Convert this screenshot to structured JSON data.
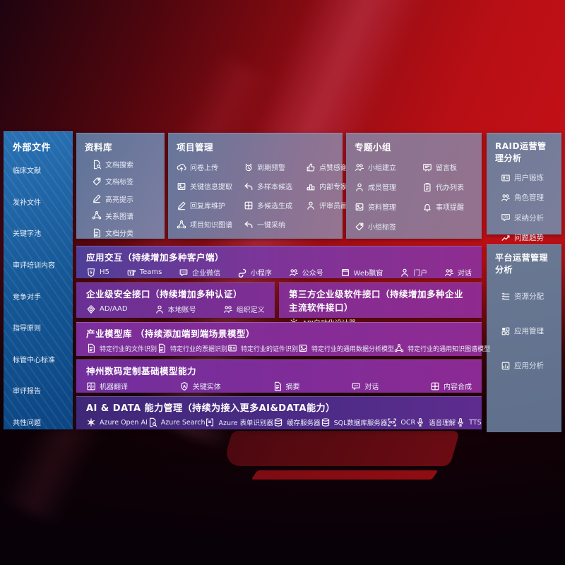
{
  "colors": {
    "background_red": "#b70f15",
    "left_panel_blue": "#145694",
    "slate_panel": "#6f7b97",
    "purple_row": "#7c3598",
    "dark_purple_row": "#4b2b86",
    "text": "#ffffff"
  },
  "panels": {
    "external_files": {
      "title": "外部文件",
      "items": [
        {
          "label": "临床文献"
        },
        {
          "label": "发补文件"
        },
        {
          "label": "关键字池"
        },
        {
          "label": "审评培训内容"
        },
        {
          "label": "竞争对手"
        },
        {
          "label": "指导原则"
        },
        {
          "label": "标管中心标准"
        },
        {
          "label": "审评报告"
        },
        {
          "label": "共性问题"
        }
      ]
    },
    "repository": {
      "title": "资料库",
      "items": [
        {
          "icon": "doc-search-icon",
          "label": "文档搜索"
        },
        {
          "icon": "doc-tag-icon",
          "label": "文档标签"
        },
        {
          "icon": "highlight-pencil-icon",
          "label": "高亮提示"
        },
        {
          "icon": "relation-graph-icon",
          "label": "关系图谱"
        },
        {
          "icon": "doc-classify-icon",
          "label": "文档分类"
        }
      ]
    },
    "project_mgmt": {
      "title": "项目管理",
      "items": [
        {
          "icon": "cloud-upload-icon",
          "label": "问卷上传"
        },
        {
          "icon": "alarm-warning-icon",
          "label": "到期预警"
        },
        {
          "icon": "thumbs-up-icon",
          "label": "点赞感谢"
        },
        {
          "icon": "info-extract-icon",
          "label": "关键信息提取"
        },
        {
          "icon": "multi-sample-icon",
          "label": "多样本候选"
        },
        {
          "icon": "expert-ranking-icon",
          "label": "内部专家排名"
        },
        {
          "icon": "reply-maintain-icon",
          "label": "回复库维护"
        },
        {
          "icon": "multi-generate-icon",
          "label": "多候选生成"
        },
        {
          "icon": "reviewer-profile-icon",
          "label": "评审员画像"
        },
        {
          "icon": "knowledge-graph-icon",
          "label": "项目知识图谱"
        },
        {
          "icon": "one-click-adopt-icon",
          "label": "一键采纳"
        }
      ]
    },
    "topic_groups": {
      "title": "专题小组",
      "items": [
        {
          "icon": "group-create-icon",
          "label": "小组建立"
        },
        {
          "icon": "message-board-icon",
          "label": "留言板"
        },
        {
          "icon": "member-manage-icon",
          "label": "成员管理"
        },
        {
          "icon": "todo-list-icon",
          "label": "代办列表"
        },
        {
          "icon": "material-manage-icon",
          "label": "资料管理"
        },
        {
          "icon": "reminder-bell-icon",
          "label": "事项提醒"
        },
        {
          "icon": "group-tag-icon",
          "label": "小组标签"
        }
      ]
    },
    "raid_analysis": {
      "title": "RAID运营管理分析",
      "items": [
        {
          "icon": "user-card-icon",
          "label": "用户锻炼"
        },
        {
          "icon": "role-manage-icon",
          "label": "角色管理"
        },
        {
          "icon": "adoption-analysis-icon",
          "label": "采纳分析"
        },
        {
          "icon": "issue-trend-icon",
          "label": "问题趋势"
        }
      ]
    },
    "platform_analysis": {
      "title": "平台运营管理分析",
      "items": [
        {
          "icon": "resource-list-icon",
          "label": "资源分配"
        },
        {
          "icon": "app-grid-icon",
          "label": "应用管理"
        },
        {
          "icon": "app-analysis-icon",
          "label": "应用分析"
        }
      ]
    },
    "app_interaction": {
      "title": "应用交互（持续增加多种客户端）",
      "items": [
        {
          "icon": "h5-icon",
          "label": "H5"
        },
        {
          "icon": "teams-icon",
          "label": "Teams"
        },
        {
          "icon": "wechat-work-icon",
          "label": "企业微信"
        },
        {
          "icon": "miniprogram-icon",
          "label": "小程序"
        },
        {
          "icon": "official-account-icon",
          "label": "公众号"
        },
        {
          "icon": "web-popup-icon",
          "label": "Web飘窗"
        },
        {
          "icon": "portal-icon",
          "label": "门户"
        },
        {
          "icon": "dialog-icon",
          "label": "对话"
        }
      ]
    },
    "security_interface": {
      "title": "企业级安全接口（持续增加多种认证）",
      "items": [
        {
          "icon": "ad-shield-icon",
          "label": "AD/AAD"
        },
        {
          "icon": "local-account-icon",
          "label": "本地账号"
        },
        {
          "icon": "org-define-icon",
          "label": "组织定义"
        }
      ]
    },
    "third_party_interface": {
      "title": "第三方企业级软件接口（持续增加多种企业主流软件接口）",
      "items": [
        {
          "icon": "api-gear-icon",
          "label": "API自动化设计器"
        }
      ]
    },
    "industry_models": {
      "title": "产业模型库 （持续添加端到端场景模型）",
      "items": [
        {
          "icon": "file-recog-icon",
          "label": "特定行业的文件识别"
        },
        {
          "icon": "invoice-recog-icon",
          "label": "特定行业的票据识别"
        },
        {
          "icon": "cert-recog-icon",
          "label": "特定行业的证件识别"
        },
        {
          "icon": "data-model-icon",
          "label": "特定行业的通用数据分析模型"
        },
        {
          "icon": "graph-model-icon",
          "label": "特定行业的通用知识图谱模型"
        }
      ]
    },
    "base_models": {
      "title": "神州数码定制基础模型能力",
      "items": [
        {
          "icon": "translate-icon",
          "label": "机器翻译"
        },
        {
          "icon": "entity-icon",
          "label": "关键实体"
        },
        {
          "icon": "summary-icon",
          "label": "摘要"
        },
        {
          "icon": "chat-icon",
          "label": "对话"
        },
        {
          "icon": "compose-icon",
          "label": "内容合成"
        }
      ]
    },
    "ai_data": {
      "title": "AI & DATA 能力管理（持续为接入更多AI&DATA能力）",
      "items": [
        {
          "icon": "openai-icon",
          "label": "Azure Open AI"
        },
        {
          "icon": "azure-search-icon",
          "label": "Azure Search"
        },
        {
          "icon": "form-recognizer-icon",
          "label": "Azure 表单识别器"
        },
        {
          "icon": "cache-server-icon",
          "label": "缓存服务器"
        },
        {
          "icon": "sql-server-icon",
          "label": "SQL数据库服务器"
        },
        {
          "icon": "ocr-icon",
          "label": "OCR"
        },
        {
          "icon": "speech-icon",
          "label": "语音理解"
        },
        {
          "icon": "tts-icon",
          "label": "TTS"
        }
      ]
    }
  }
}
